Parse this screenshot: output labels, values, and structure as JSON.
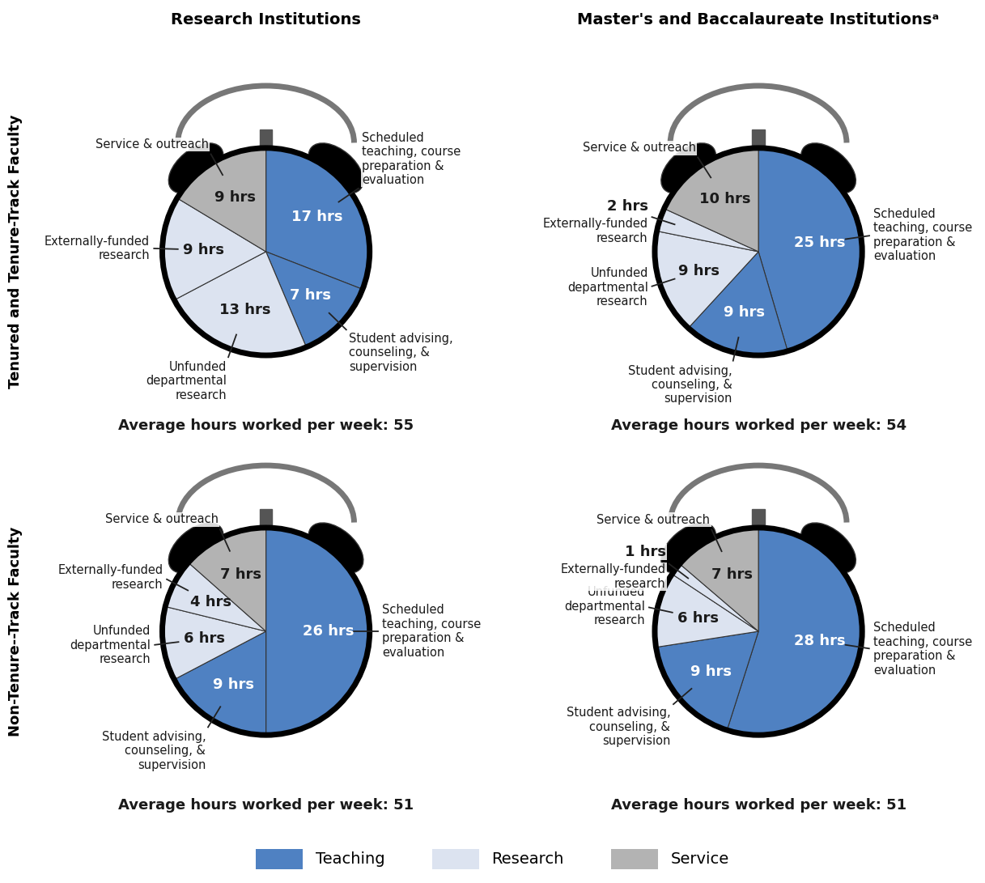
{
  "chart_data": [
    {
      "type": "pie",
      "subtitle": "Average hours worked per week: 55",
      "data_labels": true,
      "categories": [
        "Scheduled teaching, course preparation & evaluation",
        "Student advising, counseling, & supervision",
        "Unfunded departmental research",
        "Externally-funded research",
        "Service & outreach"
      ],
      "values": [
        17,
        7,
        13,
        9,
        9
      ],
      "value_labels": [
        "17 hrs",
        "7 hrs",
        "13 hrs",
        "9 hrs",
        "9 hrs"
      ],
      "colors": [
        "#4f81c2",
        "#4f81c2",
        "#dce3f0",
        "#dce3f0",
        "#b3b3b3"
      ]
    },
    {
      "type": "pie",
      "subtitle": "Average hours worked per week: 54",
      "data_labels": true,
      "categories": [
        "Scheduled teaching, course preparation & evaluation",
        "Student advising, counseling, & supervision",
        "Unfunded departmental research",
        "Externally-funded research",
        "Service & outreach"
      ],
      "values": [
        25,
        9,
        9,
        2,
        10
      ],
      "value_labels": [
        "25 hrs",
        "9 hrs",
        "9 hrs",
        "2 hrs",
        "10 hrs"
      ],
      "colors": [
        "#4f81c2",
        "#4f81c2",
        "#dce3f0",
        "#dce3f0",
        "#b3b3b3"
      ]
    },
    {
      "type": "pie",
      "subtitle": "Average hours worked per week: 51",
      "data_labels": true,
      "categories": [
        "Scheduled teaching, course preparation & evaluation",
        "Student advising, counseling, & supervision",
        "Unfunded departmental research",
        "Externally-funded research",
        "Service & outreach"
      ],
      "values": [
        26,
        9,
        6,
        4,
        7
      ],
      "value_labels": [
        "26 hrs",
        "9 hrs",
        "6 hrs",
        "4 hrs",
        "7 hrs"
      ],
      "colors": [
        "#4f81c2",
        "#4f81c2",
        "#dce3f0",
        "#dce3f0",
        "#b3b3b3"
      ]
    },
    {
      "type": "pie",
      "subtitle": "Average hours worked per week: 51",
      "data_labels": true,
      "categories": [
        "Scheduled teaching, course preparation & evaluation",
        "Student advising, counseling, & supervision",
        "Unfunded departmental research",
        "Externally-funded research",
        "Service & outreach"
      ],
      "values": [
        28,
        9,
        6,
        1,
        7
      ],
      "value_labels": [
        "28 hrs",
        "9 hrs",
        "6 hrs",
        "1 hrs",
        "7 hrs"
      ],
      "colors": [
        "#4f81c2",
        "#4f81c2",
        "#dce3f0",
        "#dce3f0",
        "#b3b3b3"
      ]
    }
  ],
  "column_titles": [
    "Research Institutions",
    "Master's and Baccalaureate Institutionsᵃ"
  ],
  "row_titles": [
    "Tenured and Tenure-Track Faculty",
    "Non-Tenure--Track Faculty"
  ],
  "legend": "bottom",
  "series": [
    {
      "name": "Teaching",
      "color": "#4f81c2"
    },
    {
      "name": "Research",
      "color": "#dce3f0"
    },
    {
      "name": "Service",
      "color": "#b3b3b3"
    }
  ]
}
